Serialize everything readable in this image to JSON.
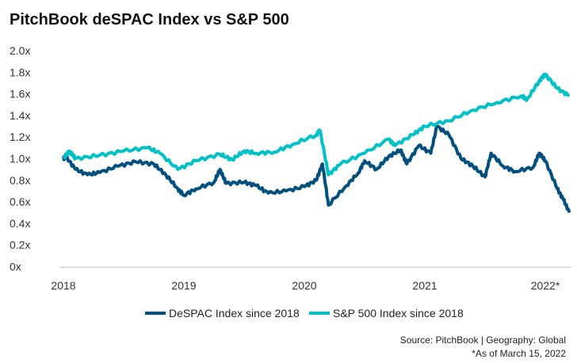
{
  "chart_data": {
    "type": "line",
    "title": "PitchBook deSPAC Index vs S&P 500",
    "xlabel": "",
    "ylabel": "",
    "xlim": [
      2017.95,
      2022.22
    ],
    "ylim": [
      0,
      2.0
    ],
    "y_ticks": [
      0,
      0.2,
      0.4,
      0.6,
      0.8,
      1.0,
      1.2,
      1.4,
      1.6,
      1.8,
      2.0
    ],
    "y_tick_labels": [
      "0x",
      "0.2x",
      "0.4x",
      "0.6x",
      "0.8x",
      "1.0x",
      "1.2x",
      "1.4x",
      "1.6x",
      "1.8x",
      "2.0x"
    ],
    "x_ticks": [
      2018,
      2019,
      2020,
      2021,
      2022
    ],
    "x_tick_labels": [
      "2018",
      "2019",
      "2020",
      "2021",
      "2022*"
    ],
    "grid": false,
    "legend_position": "bottom",
    "series": [
      {
        "name": "DeSPAC Index since 2018",
        "color": "#00507f",
        "x": [
          2018,
          2018.02,
          2018.1,
          2018.2,
          2018.3,
          2018.45,
          2018.6,
          2018.75,
          2018.85,
          2018.95,
          2019.0,
          2019.1,
          2019.25,
          2019.3,
          2019.35,
          2019.5,
          2019.6,
          2019.7,
          2019.85,
          2020.0,
          2020.1,
          2020.15,
          2020.2,
          2020.35,
          2020.45,
          2020.5,
          2020.6,
          2020.7,
          2020.8,
          2020.85,
          2020.95,
          2021.05,
          2021.1,
          2021.2,
          2021.3,
          2021.4,
          2021.5,
          2021.55,
          2021.65,
          2021.75,
          2021.9,
          2021.95,
          2022.0,
          2022.1,
          2022.15,
          2022.2
        ],
        "y": [
          1.0,
          1.02,
          0.9,
          0.85,
          0.87,
          0.93,
          0.97,
          0.95,
          0.85,
          0.72,
          0.66,
          0.72,
          0.78,
          0.9,
          0.77,
          0.78,
          0.75,
          0.68,
          0.7,
          0.74,
          0.8,
          0.95,
          0.57,
          0.75,
          0.87,
          0.98,
          0.9,
          1.02,
          1.08,
          0.95,
          1.12,
          1.05,
          1.3,
          1.22,
          1.0,
          0.93,
          0.83,
          1.05,
          0.93,
          0.88,
          0.92,
          1.05,
          0.98,
          0.72,
          0.62,
          0.5
        ]
      },
      {
        "name": "S&P 500 Index since 2018",
        "color": "#00c0c8",
        "x": [
          2018,
          2018.05,
          2018.1,
          2018.3,
          2018.5,
          2018.7,
          2018.8,
          2018.95,
          2019.1,
          2019.3,
          2019.4,
          2019.5,
          2019.6,
          2019.75,
          2019.9,
          2020.1,
          2020.13,
          2020.2,
          2020.3,
          2020.5,
          2020.7,
          2020.75,
          2020.9,
          2021.0,
          2021.2,
          2021.4,
          2021.6,
          2021.8,
          2021.85,
          2021.95,
          2022.0,
          2022.1,
          2022.2
        ],
        "y": [
          1.0,
          1.07,
          1.0,
          1.03,
          1.07,
          1.1,
          1.05,
          0.9,
          0.98,
          1.04,
          0.99,
          1.07,
          1.05,
          1.06,
          1.13,
          1.22,
          1.26,
          0.85,
          0.95,
          1.05,
          1.18,
          1.12,
          1.22,
          1.3,
          1.35,
          1.45,
          1.52,
          1.58,
          1.55,
          1.72,
          1.78,
          1.65,
          1.58
        ]
      }
    ]
  },
  "source": "Source: PitchBook  |  Geography: Global",
  "footnote": "*As of March 15, 2022"
}
